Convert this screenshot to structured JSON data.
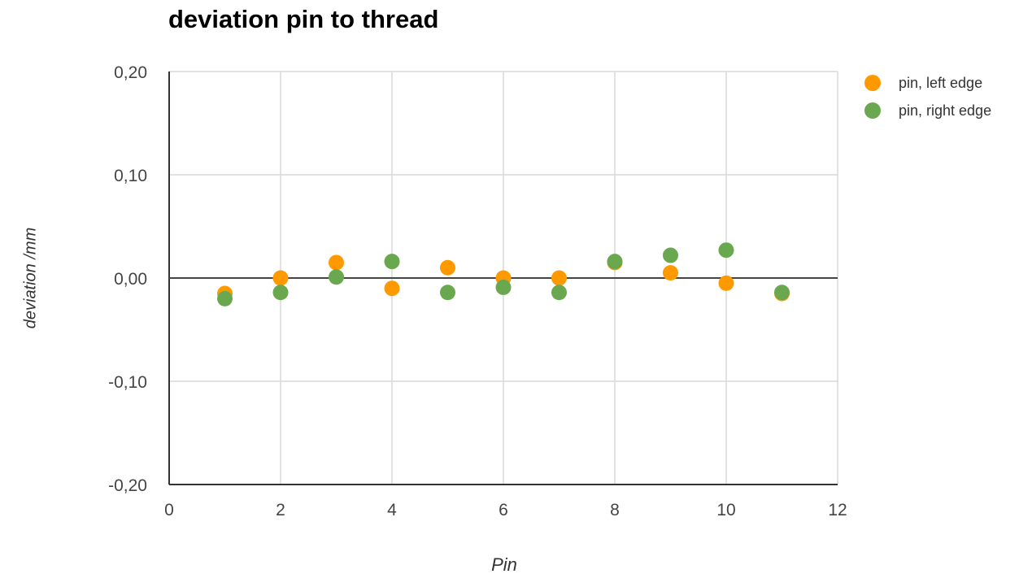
{
  "chart_data": {
    "type": "scatter",
    "title": "deviation pin to thread",
    "xlabel": "Pin",
    "ylabel": "deviation /mm",
    "xlim": [
      0,
      12
    ],
    "ylim": [
      -0.2,
      0.2
    ],
    "x_ticks": [
      0,
      2,
      4,
      6,
      8,
      10,
      12
    ],
    "y_ticks": [
      -0.2,
      -0.1,
      0,
      0.1,
      0.2
    ],
    "x_tick_labels": [
      "0",
      "2",
      "4",
      "6",
      "8",
      "10",
      "12"
    ],
    "y_tick_labels": [
      "-0,20",
      "-0,10",
      "0,00",
      "0,10",
      "0,20"
    ],
    "grid": true,
    "legend_position": "top-right",
    "series": [
      {
        "name": "pin, left edge",
        "color": "#ff9900",
        "points": [
          [
            1,
            -0.015
          ],
          [
            2,
            0.0
          ],
          [
            3,
            0.015
          ],
          [
            4,
            -0.01
          ],
          [
            5,
            0.01
          ],
          [
            6,
            0.0
          ],
          [
            7,
            0.0
          ],
          [
            8,
            0.015
          ],
          [
            9,
            0.005
          ],
          [
            10,
            -0.005
          ],
          [
            11,
            -0.015
          ]
        ]
      },
      {
        "name": "pin, right edge",
        "color": "#6aa84f",
        "points": [
          [
            1,
            -0.02
          ],
          [
            2,
            -0.014
          ],
          [
            3,
            0.001
          ],
          [
            4,
            0.016
          ],
          [
            5,
            -0.014
          ],
          [
            6,
            -0.009
          ],
          [
            7,
            -0.014
          ],
          [
            8,
            0.016
          ],
          [
            9,
            0.022
          ],
          [
            10,
            0.027
          ],
          [
            11,
            -0.014
          ]
        ]
      }
    ]
  }
}
